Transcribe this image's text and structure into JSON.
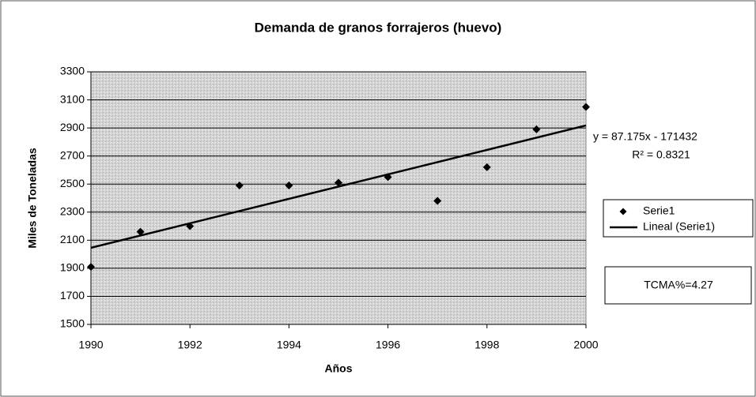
{
  "chart_data": {
    "type": "scatter",
    "title": "Demanda de granos forrajeros (huevo)",
    "xlabel": "Años",
    "ylabel": "Miles de Toneladas",
    "series": [
      {
        "name": "Serie1",
        "color": "#000000",
        "marker": "diamond",
        "x": [
          1990,
          1991,
          1992,
          1993,
          1994,
          1995,
          1996,
          1997,
          1998,
          1999,
          2000
        ],
        "values": [
          1910,
          2160,
          2200,
          2490,
          2490,
          2510,
          2550,
          2380,
          2620,
          2890,
          3050
        ]
      },
      {
        "name": "Lineal (Serie1)",
        "color": "#000000",
        "kind": "trendline",
        "x": [
          1990,
          2000
        ],
        "values": [
          2046,
          2918
        ]
      }
    ],
    "annotations": [
      "y = 87.175x - 171432",
      "R² = 0.8321",
      "TCMA%=4.27"
    ],
    "xlim": [
      1990,
      2000
    ],
    "xticks": [
      1990,
      1992,
      1994,
      1996,
      1998,
      2000
    ],
    "ylim": [
      1500,
      3300
    ],
    "yticks": [
      1500,
      1700,
      1900,
      2100,
      2300,
      2500,
      2700,
      2900,
      3100,
      3300
    ],
    "grid": true,
    "legend": "right"
  }
}
